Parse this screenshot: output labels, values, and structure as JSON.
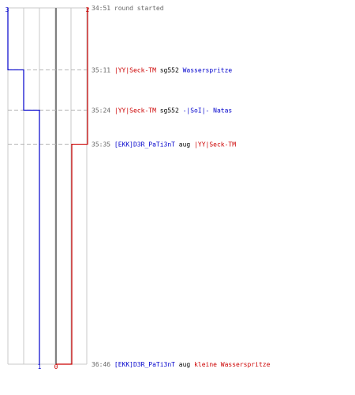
{
  "chart_data": {
    "type": "line",
    "title": "",
    "xlabel": "",
    "ylabel": "",
    "colors": {
      "blue_team": "#0000cc",
      "red_team": "#cc0000",
      "timestamp": "#666666",
      "event_text": "#000000",
      "grid": "#c8c8c8",
      "center_line": "#808080",
      "event_line": "#b4b4b4"
    },
    "x_ticks": [
      "3",
      "2",
      "1",
      "0"
    ],
    "y_events": [
      {
        "time": "34:51",
        "segments": [
          {
            "text": "round started",
            "team": "timestamp"
          }
        ]
      },
      {
        "time": "35:11",
        "segments": [
          {
            "text": "|YY|Seck-TM",
            "team": "red"
          },
          {
            "text": " sg552 ",
            "team": "event"
          },
          {
            "text": "Wasserspritze",
            "team": "blue"
          }
        ]
      },
      {
        "time": "35:24",
        "segments": [
          {
            "text": "|YY|Seck-TM",
            "team": "red"
          },
          {
            "text": " sg552 ",
            "team": "event"
          },
          {
            "text": "-|SoI|- Natas",
            "team": "blue"
          }
        ]
      },
      {
        "time": "35:35",
        "segments": [
          {
            "text": "[EKK]D3R_PaTi3nT",
            "team": "blue"
          },
          {
            "text": " aug ",
            "team": "event"
          },
          {
            "text": "|YY|Seck-TM",
            "team": "red"
          }
        ]
      },
      {
        "time": "36:46",
        "segments": [
          {
            "text": "[EKK]D3R_PaTi3nT",
            "team": "blue"
          },
          {
            "text": " aug ",
            "team": "event"
          },
          {
            "text": "kleine Wasserspritze",
            "team": "red"
          }
        ]
      }
    ],
    "series": [
      {
        "team": "blue",
        "times": [
          "34:51",
          "35:11",
          "35:24",
          "36:46"
        ],
        "values": [
          3,
          2,
          1,
          1
        ]
      },
      {
        "team": "red",
        "times": [
          "34:51",
          "35:35",
          "36:46"
        ],
        "values": [
          2,
          1,
          0
        ]
      }
    ]
  }
}
